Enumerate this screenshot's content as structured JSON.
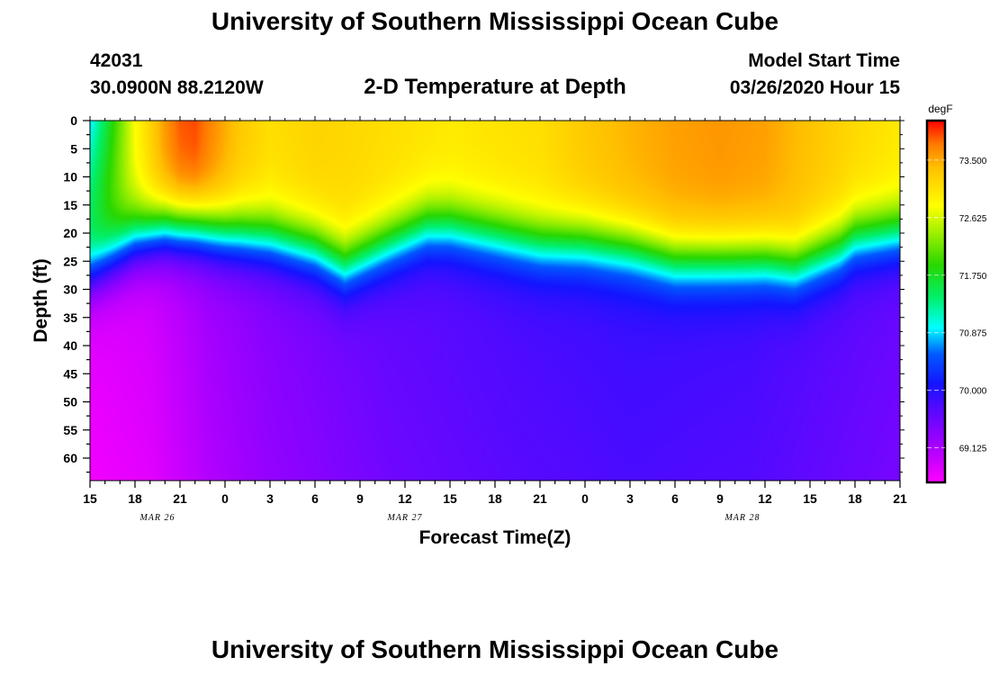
{
  "header": {
    "title": "University of Southern Mississippi Ocean Cube",
    "station": "42031",
    "coords": "30.0900N 88.2120W",
    "plot_title": "2-D Temperature at Depth",
    "model_label": "Model Start Time",
    "model_time": "03/26/2020 Hour 15"
  },
  "footer": {
    "title": "University of Southern Mississippi Ocean Cube"
  },
  "chart_data": {
    "type": "heatmap",
    "title": "2-D Temperature at Depth",
    "xlabel": "Forecast Time(Z)",
    "ylabel": "Depth (ft)",
    "x_ticks": [
      "15",
      "18",
      "21",
      "0",
      "3",
      "6",
      "9",
      "12",
      "15",
      "18",
      "21",
      "0",
      "3",
      "6",
      "9",
      "12",
      "15",
      "18",
      "21"
    ],
    "x_range_hours": [
      0,
      54
    ],
    "date_labels": [
      {
        "label": "MAR 26",
        "hour": 4.5
      },
      {
        "label": "MAR 27",
        "hour": 21
      },
      {
        "label": "MAR 28",
        "hour": 43.5
      }
    ],
    "y_ticks": [
      0,
      5,
      10,
      15,
      20,
      25,
      30,
      35,
      40,
      45,
      50,
      55,
      60
    ],
    "y_range": [
      0,
      64
    ],
    "colorbar": {
      "unit": "degF",
      "ticks": [
        69.125,
        70.0,
        70.875,
        71.75,
        72.625,
        73.5
      ],
      "tick_labels": [
        "69.125",
        "70.000",
        "70.875",
        "71.750",
        "72.625",
        "73.500"
      ],
      "range": [
        68.6,
        74.1
      ]
    },
    "thermocline_depth_ft": {
      "hours": [
        0,
        1.5,
        3,
        5,
        7,
        9,
        12,
        15,
        17,
        20,
        22.5,
        24,
        26,
        28,
        30,
        33,
        36,
        39,
        42,
        45,
        47,
        50,
        51,
        54
      ],
      "values": [
        27,
        24,
        21,
        19,
        19,
        20,
        21,
        23,
        26,
        22,
        19,
        19,
        20,
        21,
        22,
        22,
        23,
        25,
        25,
        25,
        26,
        23,
        21,
        20
      ]
    },
    "surface_temp_degF": {
      "hours": [
        0,
        3,
        5,
        6,
        7,
        8,
        10,
        12,
        15,
        18,
        24,
        30,
        33,
        36,
        39,
        42,
        45,
        48,
        51,
        54
      ],
      "values": [
        71.8,
        72.8,
        73.6,
        73.85,
        73.9,
        73.7,
        73.3,
        73.1,
        73.2,
        73.15,
        73.0,
        73.1,
        73.3,
        73.45,
        73.55,
        73.6,
        73.55,
        73.35,
        73.15,
        73.0
      ]
    },
    "deep_temp_degF": {
      "hours": [
        0,
        4,
        8,
        12,
        20,
        28,
        36,
        44,
        54
      ],
      "values": [
        68.8,
        68.9,
        69.2,
        69.4,
        69.65,
        69.8,
        69.9,
        69.85,
        69.6
      ]
    }
  }
}
